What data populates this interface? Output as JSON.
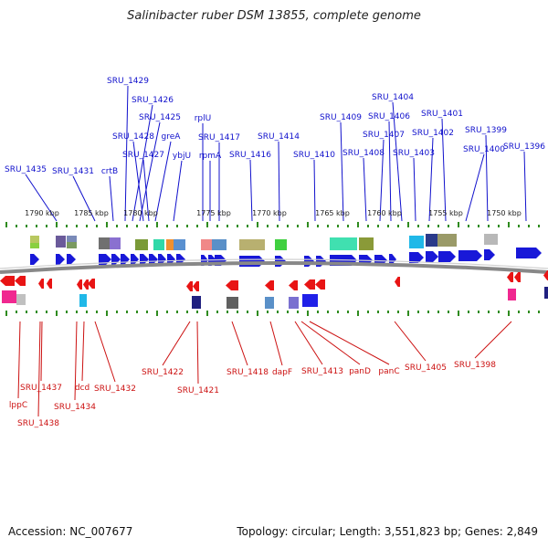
{
  "title": "Salinibacter ruber DSM 13855, complete genome",
  "footer": {
    "accession": "Accession: NC_007677",
    "summary": "Topology: circular; Length: 3,551,823 bp; Genes: 2,849"
  },
  "colors": {
    "forward_label": "#1010cc",
    "reverse_label": "#cc1111",
    "forward_arrow": "#1818d8",
    "reverse_arrow": "#e81414",
    "backbone": "#888888",
    "tick": "#2e8b1e"
  },
  "scale_labels": [
    "1790 kbp",
    "1785 kbp",
    "1780 kbp",
    "1775 kbp",
    "1770 kbp",
    "1765 kbp",
    "1760 kbp",
    "1755 kbp",
    "1750 kbp"
  ],
  "forward_genes": [
    "SRU_1429",
    "SRU_1426",
    "SRU_1425",
    "greA",
    "SRU_1428",
    "SRU_1427",
    "ybjU",
    "rplU",
    "SRU_1417",
    "rpmA",
    "SRU_1416",
    "SRU_1414",
    "SRU_1435",
    "SRU_1431",
    "crtB",
    "SRU_1410",
    "SRU_1409",
    "SRU_1408",
    "SRU_1406",
    "SRU_1407",
    "SRU_1404",
    "SRU_1403",
    "SRU_1402",
    "SRU_1401",
    "SRU_1400",
    "SRU_1399",
    "SRU_1396"
  ],
  "reverse_genes": [
    "lppC",
    "SRU_1438",
    "SRU_1437",
    "SRU_1434",
    "dcd",
    "SRU_1432",
    "SRU_1422",
    "SRU_1421",
    "SRU_1418",
    "dapF",
    "SRU_1413",
    "panD",
    "panC",
    "SRU_1405",
    "SRU_1398"
  ]
}
